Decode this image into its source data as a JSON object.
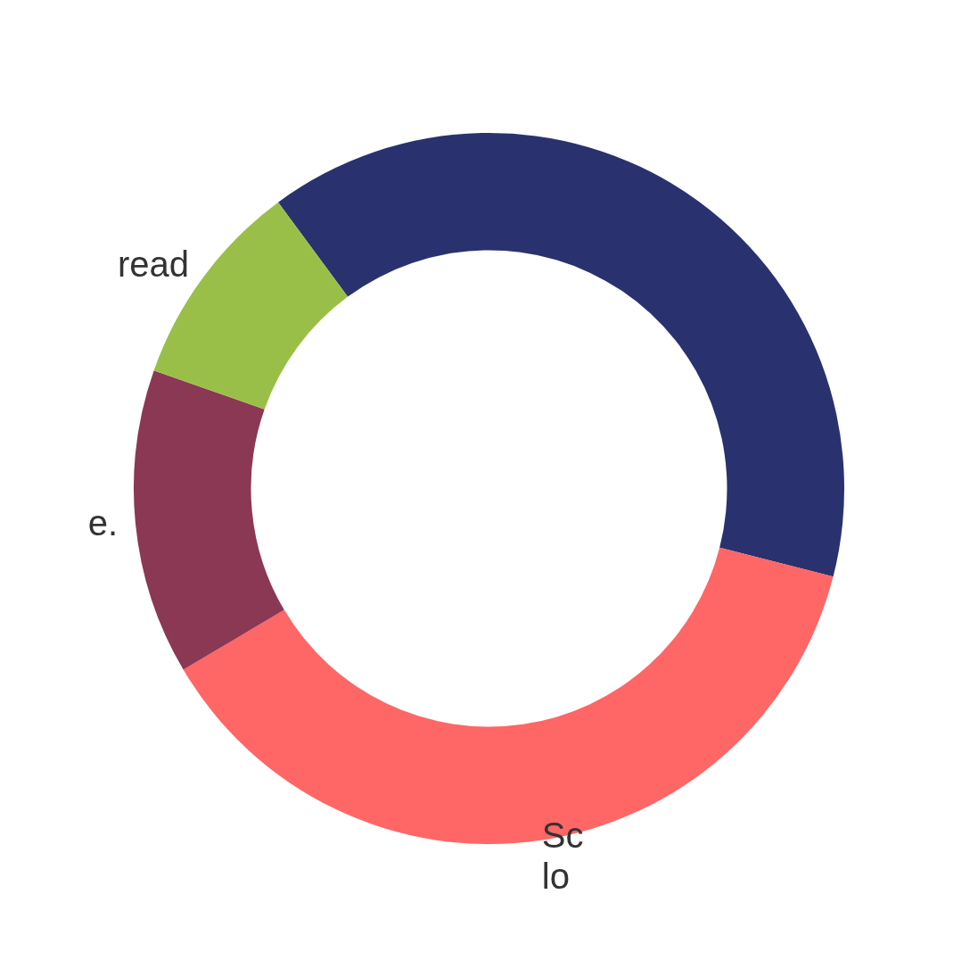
{
  "chart_data": {
    "type": "donut",
    "categories": [
      null,
      "Sc lo",
      "e.",
      "read"
    ],
    "values": [
      39.1,
      37.5,
      13.9,
      9.5
    ],
    "colors": [
      "#29326e",
      "#ff6666",
      "#8b3854",
      "#9abf48"
    ]
  }
}
